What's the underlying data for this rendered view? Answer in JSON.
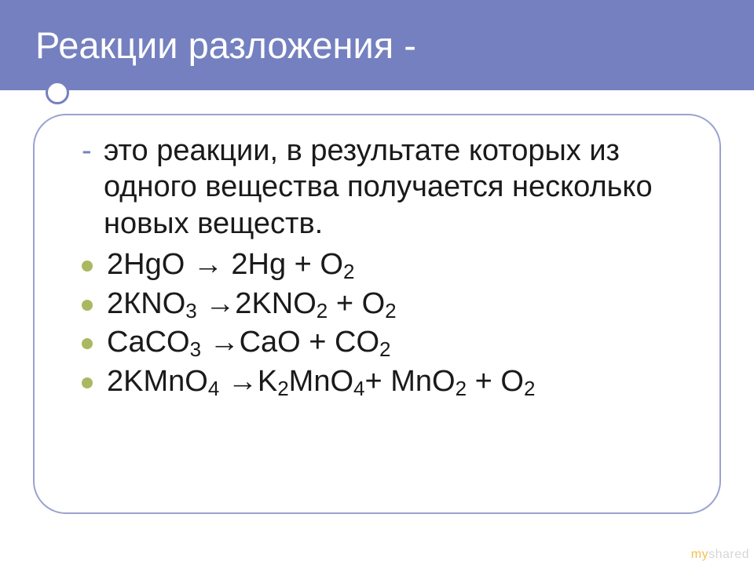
{
  "colors": {
    "title_bg": "#7580c0",
    "title_text": "#ffffff",
    "rule": "#7580c0",
    "box_border": "#9aa2d0",
    "bullet": "#a9b961",
    "body_text": "#1a1a1a",
    "dash": "#7580c0",
    "watermark_gray": "#d6d6d6",
    "watermark_accent": "#f2c14e"
  },
  "typography": {
    "title_fontsize": 47,
    "body_fontsize": 38,
    "sub_fontsize": 26
  },
  "title": "Реакции разложения -",
  "definition": "это реакции, в результате которых из одного вещества получается несколько новых веществ.",
  "reactions": [
    {
      "html": "2HgO → 2Hg + O<sub>2</sub>"
    },
    {
      "html": "2КNO<sub>3</sub> →2KNO<sub>2</sub> + O<sub>2</sub>"
    },
    {
      "html": "CaCO<sub>3</sub> →CaO + CO<sub>2</sub>"
    },
    {
      "html": "2KMnO<sub>4</sub> →K<sub>2</sub>MnO<sub>4</sub>+ MnO<sub>2</sub> + O<sub>2</sub>"
    }
  ],
  "watermark": {
    "prefix": "my",
    "rest": "shared"
  }
}
